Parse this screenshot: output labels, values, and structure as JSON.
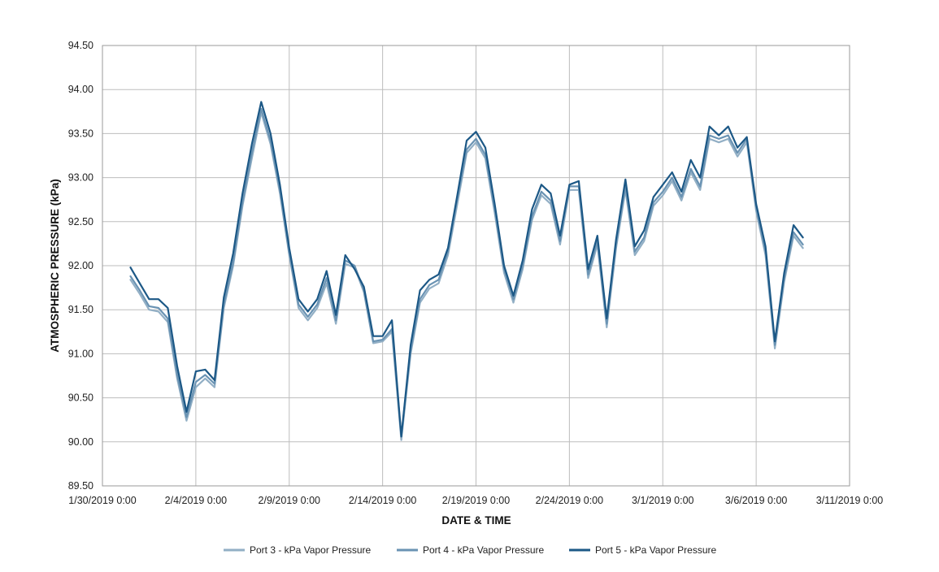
{
  "chart_data": {
    "type": "line",
    "title": "",
    "xlabel": "DATE & TIME",
    "ylabel": "ATMOSPHERIC PRESSURE (kPa)",
    "ylim": [
      89.5,
      94.5
    ],
    "xlim": [
      "1/30/2019 0:00",
      "3/11/2019 0:00"
    ],
    "grid": true,
    "legend_position": "bottom",
    "y_ticks": [
      "89.50",
      "90.00",
      "90.50",
      "91.00",
      "91.50",
      "92.00",
      "92.50",
      "93.00",
      "93.50",
      "94.00",
      "94.50"
    ],
    "x_ticks": [
      "1/30/2019 0:00",
      "2/4/2019 0:00",
      "2/9/2019 0:00",
      "2/14/2019 0:00",
      "2/19/2019 0:00",
      "2/24/2019 0:00",
      "3/1/2019 0:00",
      "3/6/2019 0:00",
      "3/11/2019 0:00"
    ],
    "x": [
      "1/31/2019 12:00",
      "2/1/2019 0:00",
      "2/1/2019 12:00",
      "2/2/2019 0:00",
      "2/2/2019 12:00",
      "2/3/2019 0:00",
      "2/3/2019 12:00",
      "2/4/2019 0:00",
      "2/4/2019 12:00",
      "2/5/2019 0:00",
      "2/5/2019 12:00",
      "2/6/2019 0:00",
      "2/6/2019 12:00",
      "2/7/2019 0:00",
      "2/7/2019 12:00",
      "2/8/2019 0:00",
      "2/8/2019 12:00",
      "2/9/2019 0:00",
      "2/9/2019 12:00",
      "2/10/2019 0:00",
      "2/10/2019 12:00",
      "2/11/2019 0:00",
      "2/11/2019 12:00",
      "2/12/2019 0:00",
      "2/12/2019 12:00",
      "2/13/2019 0:00",
      "2/13/2019 12:00",
      "2/14/2019 0:00",
      "2/14/2019 12:00",
      "2/15/2019 0:00",
      "2/15/2019 12:00",
      "2/16/2019 0:00",
      "2/16/2019 12:00",
      "2/17/2019 0:00",
      "2/17/2019 12:00",
      "2/18/2019 0:00",
      "2/18/2019 12:00",
      "2/19/2019 0:00",
      "2/19/2019 12:00",
      "2/20/2019 0:00",
      "2/20/2019 12:00",
      "2/21/2019 0:00",
      "2/21/2019 12:00",
      "2/22/2019 0:00",
      "2/22/2019 12:00",
      "2/23/2019 0:00",
      "2/23/2019 12:00",
      "2/24/2019 0:00",
      "2/24/2019 12:00",
      "2/25/2019 0:00",
      "2/25/2019 12:00",
      "2/26/2019 0:00",
      "2/26/2019 12:00",
      "2/27/2019 0:00",
      "2/27/2019 12:00",
      "2/28/2019 0:00",
      "2/28/2019 12:00",
      "3/1/2019 0:00",
      "3/1/2019 12:00",
      "3/2/2019 0:00",
      "3/2/2019 12:00",
      "3/3/2019 0:00",
      "3/3/2019 12:00",
      "3/4/2019 0:00",
      "3/4/2019 12:00",
      "3/5/2019 0:00",
      "3/5/2019 12:00",
      "3/6/2019 0:00",
      "3/6/2019 12:00",
      "3/7/2019 0:00",
      "3/7/2019 12:00",
      "3/8/2019 0:00",
      "3/8/2019 12:00"
    ],
    "series": [
      {
        "name": "Port 3 - kPa Vapor Pressure",
        "color": "#92afc5",
        "values": [
          91.84,
          91.68,
          91.5,
          91.48,
          91.36,
          90.72,
          90.24,
          90.62,
          90.72,
          90.62,
          91.52,
          92.0,
          92.68,
          93.22,
          93.74,
          93.38,
          92.82,
          92.12,
          91.52,
          91.38,
          91.52,
          91.8,
          91.34,
          92.02,
          91.98,
          91.7,
          91.12,
          91.14,
          91.25,
          90.02,
          91.0,
          91.58,
          91.74,
          91.8,
          92.12,
          92.7,
          93.28,
          93.4,
          93.22,
          92.6,
          91.92,
          91.58,
          91.96,
          92.52,
          92.8,
          92.7,
          92.24,
          92.86,
          92.86,
          91.86,
          92.24,
          91.3,
          92.2,
          92.86,
          92.12,
          92.28,
          92.68,
          92.8,
          92.96,
          92.74,
          93.06,
          92.86,
          93.44,
          93.4,
          93.44,
          93.24,
          93.4,
          92.62,
          92.12,
          91.06,
          91.82,
          92.34,
          92.2
        ]
      },
      {
        "name": "Port 4 - kPa Vapor Pressure",
        "color": "#6a93b3",
        "values": [
          91.88,
          91.72,
          91.54,
          91.52,
          91.4,
          90.76,
          90.28,
          90.68,
          90.76,
          90.66,
          91.56,
          92.04,
          92.72,
          93.28,
          93.78,
          93.42,
          92.86,
          92.14,
          91.56,
          91.42,
          91.56,
          91.86,
          91.38,
          92.06,
          92.0,
          91.72,
          91.14,
          91.16,
          91.28,
          90.06,
          91.04,
          91.62,
          91.78,
          91.84,
          92.16,
          92.76,
          93.32,
          93.44,
          93.26,
          92.64,
          91.96,
          91.62,
          92.0,
          92.56,
          92.84,
          92.74,
          92.28,
          92.9,
          92.9,
          91.9,
          92.28,
          91.34,
          92.24,
          92.9,
          92.16,
          92.32,
          92.72,
          92.84,
          93.0,
          92.78,
          93.1,
          92.9,
          93.48,
          93.44,
          93.48,
          93.28,
          93.44,
          92.66,
          92.16,
          91.1,
          91.86,
          92.38,
          92.24
        ]
      },
      {
        "name": "Port 5 - kPa Vapor Pressure",
        "color": "#1c5886",
        "values": [
          91.98,
          91.8,
          91.62,
          91.62,
          91.52,
          90.86,
          90.34,
          90.8,
          90.82,
          90.7,
          91.64,
          92.14,
          92.82,
          93.38,
          93.86,
          93.5,
          92.92,
          92.2,
          91.62,
          91.48,
          91.62,
          91.94,
          91.44,
          92.12,
          91.96,
          91.76,
          91.2,
          91.2,
          91.38,
          90.06,
          91.1,
          91.72,
          91.84,
          91.9,
          92.2,
          92.8,
          93.42,
          93.52,
          93.34,
          92.7,
          92.0,
          91.66,
          92.06,
          92.64,
          92.92,
          92.82,
          92.34,
          92.92,
          92.96,
          91.96,
          92.34,
          91.4,
          92.3,
          92.98,
          92.22,
          92.4,
          92.78,
          92.92,
          93.06,
          92.84,
          93.2,
          93.0,
          93.58,
          93.48,
          93.58,
          93.34,
          93.46,
          92.7,
          92.22,
          91.14,
          91.92,
          92.46,
          92.32
        ]
      }
    ]
  }
}
